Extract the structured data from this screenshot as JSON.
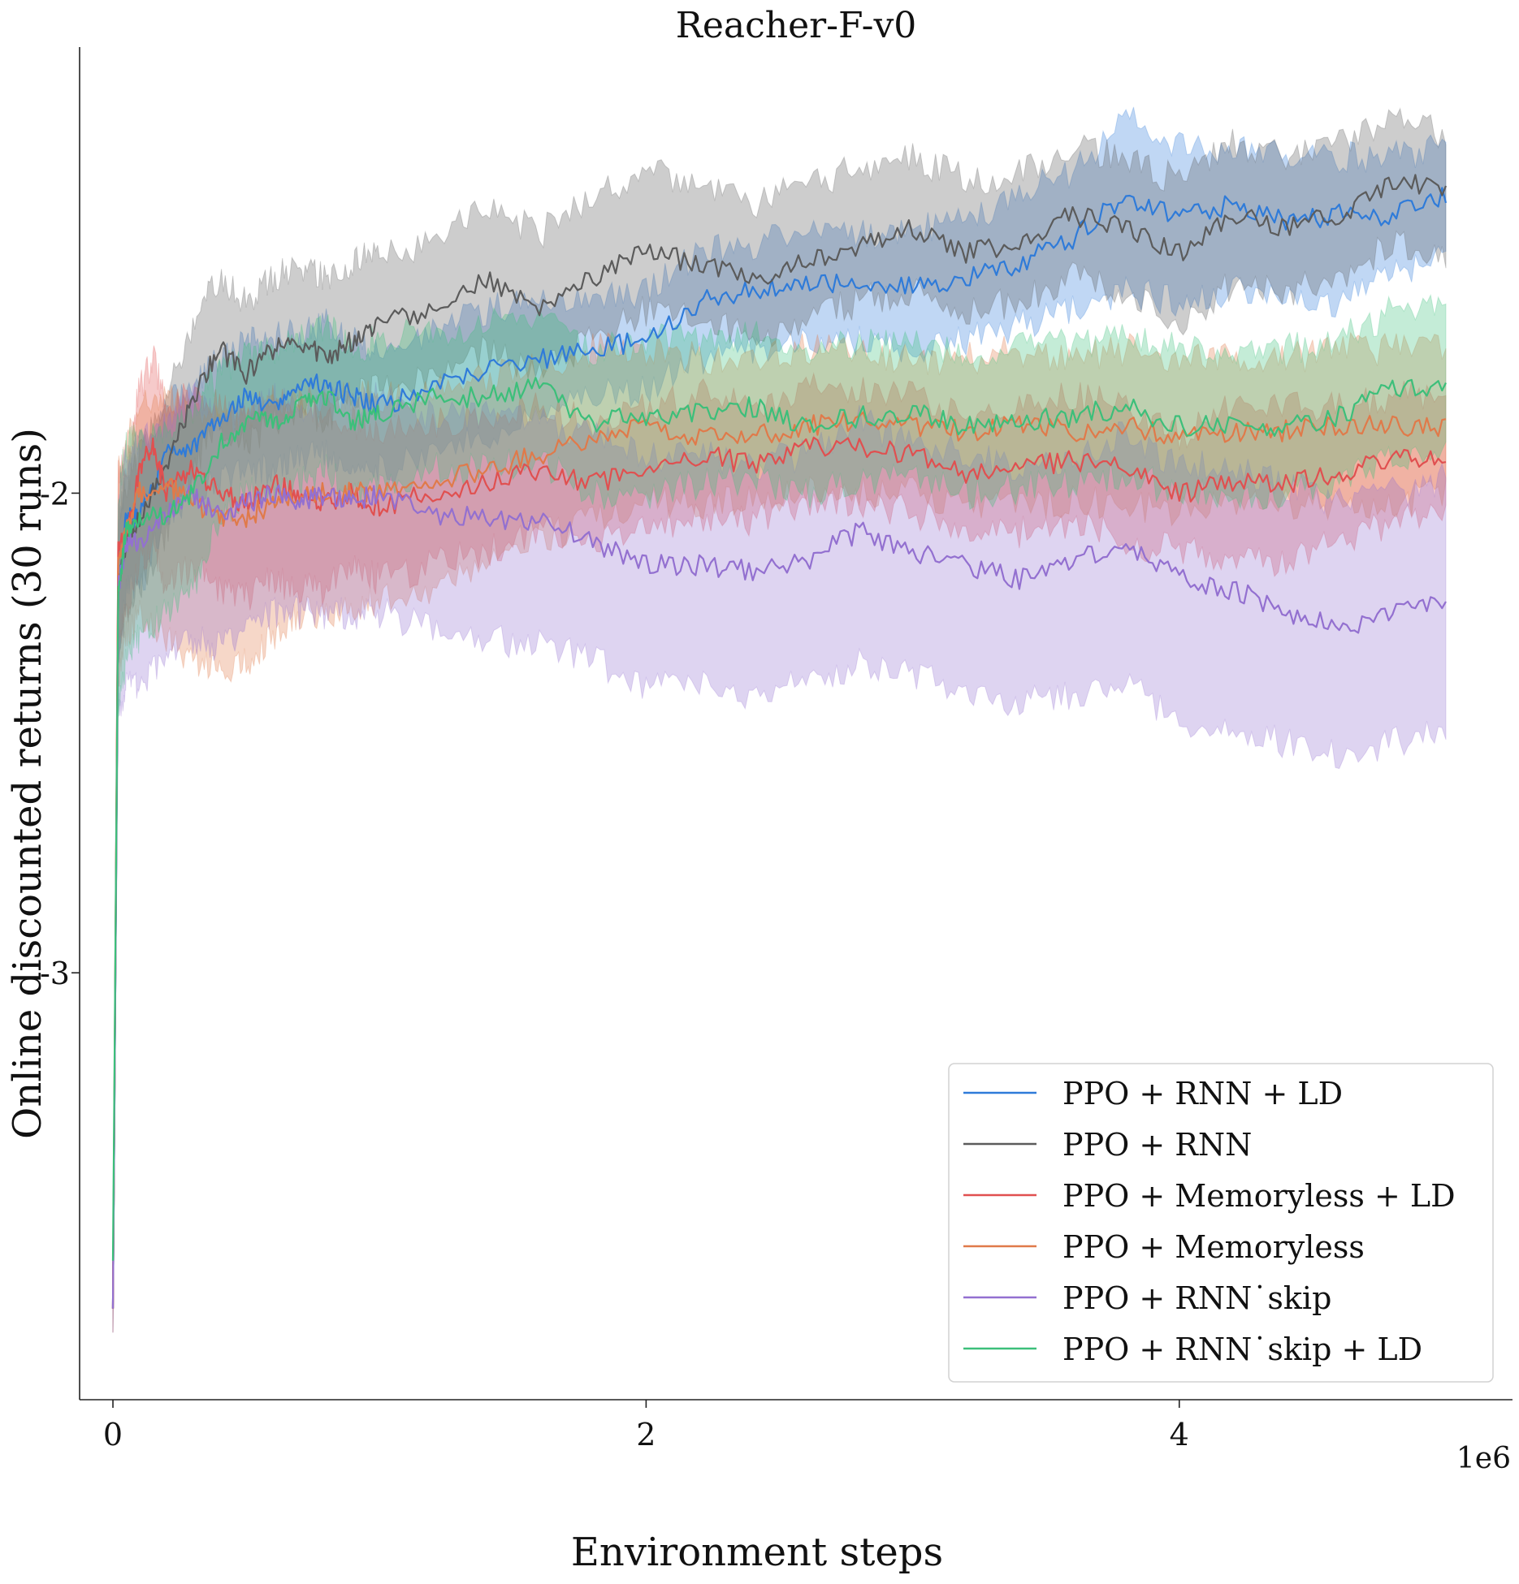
{
  "chart_data": {
    "type": "line",
    "title": "Reacher-F-v0",
    "xlabel": "Environment steps",
    "ylabel": "Online discounted returns (30 runs)",
    "x_offset_label": "1e6",
    "xlim": [
      -0.125,
      5.25
    ],
    "ylim": [
      -3.89,
      -1.07
    ],
    "x_ticks": [
      0,
      2,
      4
    ],
    "x_tick_labels": [
      "0",
      "2",
      "4"
    ],
    "y_ticks": [
      -3,
      -2
    ],
    "y_tick_labels": [
      "-3",
      "-2"
    ],
    "grid": false,
    "legend_position": "lower-right",
    "series": [
      {
        "name": "PPO + RNN + LD",
        "color": "#2f7bd9",
        "x": [
          0,
          0.02,
          0.05,
          0.1,
          0.2,
          0.3,
          0.4,
          0.5,
          0.6,
          0.7,
          0.8,
          0.9,
          1.0,
          1.2,
          1.4,
          1.6,
          1.8,
          2.0,
          2.2,
          2.4,
          2.6,
          2.8,
          3.0,
          3.2,
          3.4,
          3.6,
          3.8,
          4.0,
          4.2,
          4.4,
          4.6,
          4.8,
          5.0
        ],
        "mean": [
          -3.7,
          -2.2,
          -2.05,
          -2.05,
          -1.92,
          -1.9,
          -1.85,
          -1.8,
          -1.82,
          -1.78,
          -1.77,
          -1.8,
          -1.82,
          -1.78,
          -1.74,
          -1.72,
          -1.7,
          -1.68,
          -1.6,
          -1.58,
          -1.56,
          -1.56,
          -1.57,
          -1.55,
          -1.52,
          -1.47,
          -1.38,
          -1.42,
          -1.4,
          -1.43,
          -1.42,
          -1.42,
          -1.38
        ],
        "lower": [
          -3.75,
          -2.35,
          -2.2,
          -2.2,
          -2.05,
          -2.0,
          -1.98,
          -1.95,
          -1.95,
          -1.93,
          -1.92,
          -1.93,
          -1.95,
          -1.92,
          -1.88,
          -1.85,
          -1.8,
          -1.78,
          -1.72,
          -1.7,
          -1.68,
          -1.68,
          -1.7,
          -1.68,
          -1.65,
          -1.62,
          -1.58,
          -1.6,
          -1.58,
          -1.58,
          -1.6,
          -1.55,
          -1.5
        ],
        "upper": [
          -3.6,
          -2.1,
          -1.95,
          -1.9,
          -1.82,
          -1.78,
          -1.72,
          -1.68,
          -1.68,
          -1.66,
          -1.65,
          -1.68,
          -1.7,
          -1.66,
          -1.62,
          -1.6,
          -1.58,
          -1.58,
          -1.5,
          -1.48,
          -1.46,
          -1.46,
          -1.45,
          -1.43,
          -1.38,
          -1.33,
          -1.22,
          -1.28,
          -1.28,
          -1.3,
          -1.3,
          -1.3,
          -1.28
        ]
      },
      {
        "name": "PPO + RNN",
        "color": "#5b5b5b",
        "x": [
          0,
          0.02,
          0.05,
          0.1,
          0.2,
          0.3,
          0.4,
          0.5,
          0.6,
          0.7,
          0.8,
          0.9,
          1.0,
          1.2,
          1.4,
          1.6,
          1.8,
          2.0,
          2.2,
          2.4,
          2.6,
          2.8,
          3.0,
          3.2,
          3.4,
          3.6,
          3.8,
          4.0,
          4.2,
          4.4,
          4.6,
          4.8,
          5.0
        ],
        "mean": [
          -3.7,
          -2.2,
          -2.1,
          -2.05,
          -1.95,
          -1.8,
          -1.7,
          -1.75,
          -1.7,
          -1.68,
          -1.72,
          -1.68,
          -1.64,
          -1.62,
          -1.55,
          -1.62,
          -1.55,
          -1.5,
          -1.52,
          -1.56,
          -1.52,
          -1.48,
          -1.45,
          -1.5,
          -1.48,
          -1.42,
          -1.45,
          -1.5,
          -1.42,
          -1.45,
          -1.42,
          -1.35,
          -1.37
        ],
        "lower": [
          -3.75,
          -2.35,
          -2.25,
          -2.2,
          -2.08,
          -1.95,
          -1.85,
          -1.9,
          -1.85,
          -1.82,
          -1.85,
          -1.8,
          -1.78,
          -1.76,
          -1.7,
          -1.75,
          -1.68,
          -1.62,
          -1.64,
          -1.68,
          -1.64,
          -1.6,
          -1.58,
          -1.62,
          -1.6,
          -1.55,
          -1.58,
          -1.65,
          -1.56,
          -1.58,
          -1.55,
          -1.48,
          -1.5
        ],
        "upper": [
          -3.6,
          -2.05,
          -1.98,
          -1.92,
          -1.8,
          -1.65,
          -1.55,
          -1.6,
          -1.55,
          -1.52,
          -1.55,
          -1.52,
          -1.5,
          -1.48,
          -1.4,
          -1.46,
          -1.38,
          -1.33,
          -1.36,
          -1.4,
          -1.36,
          -1.32,
          -1.3,
          -1.35,
          -1.33,
          -1.28,
          -1.3,
          -1.35,
          -1.27,
          -1.3,
          -1.27,
          -1.22,
          -1.25
        ]
      },
      {
        "name": "PPO + Memoryless + LD",
        "color": "#e05050",
        "x": [
          0,
          0.02,
          0.05,
          0.1,
          0.15,
          0.2,
          0.3,
          0.4,
          0.5,
          0.6,
          0.7,
          0.8,
          0.9,
          1.0,
          1.2,
          1.4,
          1.6,
          1.8,
          2.0,
          2.2,
          2.4,
          2.6,
          2.8,
          3.0,
          3.2,
          3.4,
          3.6,
          3.8,
          4.0,
          4.2,
          4.4,
          4.6,
          4.8,
          5.0
        ],
        "mean": [
          -3.7,
          -2.1,
          -2.1,
          -1.95,
          -1.9,
          -2.0,
          -1.95,
          -2.0,
          -2.02,
          -1.98,
          -2.0,
          -2.02,
          -2.0,
          -2.03,
          -2.0,
          -1.98,
          -1.95,
          -1.98,
          -1.95,
          -1.92,
          -1.94,
          -1.9,
          -1.9,
          -1.92,
          -1.96,
          -1.95,
          -1.93,
          -1.95,
          -2.0,
          -1.98,
          -1.98,
          -1.96,
          -1.93,
          -1.92
        ],
        "lower": [
          -3.75,
          -2.3,
          -2.25,
          -2.15,
          -2.1,
          -2.2,
          -2.15,
          -2.2,
          -2.22,
          -2.18,
          -2.2,
          -2.2,
          -2.15,
          -2.18,
          -2.15,
          -2.12,
          -2.08,
          -2.1,
          -2.08,
          -2.05,
          -2.06,
          -2.02,
          -2.02,
          -2.04,
          -2.08,
          -2.08,
          -2.06,
          -2.1,
          -2.12,
          -2.14,
          -2.14,
          -2.1,
          -2.06,
          -2.05
        ],
        "upper": [
          -3.6,
          -1.95,
          -1.95,
          -1.78,
          -1.72,
          -1.82,
          -1.78,
          -1.82,
          -1.84,
          -1.8,
          -1.82,
          -1.85,
          -1.85,
          -1.88,
          -1.85,
          -1.84,
          -1.82,
          -1.85,
          -1.82,
          -1.79,
          -1.82,
          -1.78,
          -1.78,
          -1.8,
          -1.84,
          -1.82,
          -1.8,
          -1.82,
          -1.88,
          -1.82,
          -1.82,
          -1.82,
          -1.8,
          -1.8
        ]
      },
      {
        "name": "PPO + Memoryless",
        "color": "#e07a4a",
        "x": [
          0,
          0.02,
          0.05,
          0.1,
          0.2,
          0.3,
          0.4,
          0.5,
          0.6,
          0.7,
          0.8,
          0.9,
          1.0,
          1.2,
          1.4,
          1.6,
          1.8,
          2.0,
          2.2,
          2.4,
          2.6,
          2.8,
          3.0,
          3.2,
          3.4,
          3.6,
          3.8,
          4.0,
          4.2,
          4.4,
          4.6,
          4.8,
          5.0
        ],
        "mean": [
          -3.7,
          -2.15,
          -2.08,
          -2.0,
          -1.98,
          -2.02,
          -2.05,
          -2.05,
          -2.02,
          -2.0,
          -2.0,
          -2.0,
          -2.0,
          -1.98,
          -1.95,
          -1.92,
          -1.88,
          -1.86,
          -1.88,
          -1.88,
          -1.86,
          -1.85,
          -1.86,
          -1.87,
          -1.86,
          -1.87,
          -1.86,
          -1.88,
          -1.87,
          -1.87,
          -1.86,
          -1.86,
          -1.86
        ],
        "lower": [
          -3.75,
          -2.4,
          -2.3,
          -2.25,
          -2.3,
          -2.35,
          -2.38,
          -2.35,
          -2.3,
          -2.25,
          -2.25,
          -2.25,
          -2.22,
          -2.2,
          -2.15,
          -2.1,
          -2.05,
          -2.02,
          -2.02,
          -2.02,
          -2.0,
          -2.0,
          -2.0,
          -2.02,
          -2.02,
          -2.02,
          -2.02,
          -2.04,
          -2.02,
          -2.02,
          -2.02,
          -2.02,
          -2.0
        ],
        "upper": [
          -3.6,
          -1.95,
          -1.9,
          -1.82,
          -1.8,
          -1.82,
          -1.85,
          -1.85,
          -1.82,
          -1.8,
          -1.8,
          -1.8,
          -1.8,
          -1.78,
          -1.76,
          -1.74,
          -1.7,
          -1.7,
          -1.72,
          -1.72,
          -1.7,
          -1.7,
          -1.72,
          -1.72,
          -1.7,
          -1.72,
          -1.7,
          -1.72,
          -1.72,
          -1.72,
          -1.7,
          -1.7,
          -1.7
        ]
      },
      {
        "name": "PPO + RNN˙skip",
        "color": "#9370d0",
        "x": [
          0,
          0.02,
          0.05,
          0.1,
          0.2,
          0.3,
          0.4,
          0.5,
          0.6,
          0.7,
          0.8,
          0.9,
          1.0,
          1.2,
          1.4,
          1.6,
          1.8,
          2.0,
          2.2,
          2.4,
          2.6,
          2.8,
          3.0,
          3.2,
          3.4,
          3.6,
          3.8,
          4.0,
          4.2,
          4.4,
          4.6,
          4.8,
          5.0
        ],
        "mean": [
          -3.7,
          -2.2,
          -2.1,
          -2.1,
          -2.05,
          -2.0,
          -2.05,
          -2.02,
          -2.0,
          -2.02,
          -2.0,
          -2.02,
          -2.0,
          -2.05,
          -2.05,
          -2.06,
          -2.1,
          -2.15,
          -2.15,
          -2.16,
          -2.14,
          -2.08,
          -2.12,
          -2.15,
          -2.18,
          -2.14,
          -2.1,
          -2.18,
          -2.2,
          -2.25,
          -2.28,
          -2.25,
          -2.22
        ],
        "lower": [
          -3.75,
          -2.45,
          -2.4,
          -2.4,
          -2.35,
          -2.3,
          -2.32,
          -2.28,
          -2.25,
          -2.25,
          -2.25,
          -2.25,
          -2.25,
          -2.28,
          -2.3,
          -2.32,
          -2.35,
          -2.4,
          -2.4,
          -2.42,
          -2.4,
          -2.35,
          -2.38,
          -2.42,
          -2.44,
          -2.42,
          -2.4,
          -2.48,
          -2.5,
          -2.52,
          -2.54,
          -2.52,
          -2.48
        ],
        "upper": [
          -3.6,
          -2.0,
          -1.92,
          -1.9,
          -1.85,
          -1.8,
          -1.85,
          -1.82,
          -1.8,
          -1.82,
          -1.8,
          -1.82,
          -1.8,
          -1.84,
          -1.84,
          -1.84,
          -1.88,
          -1.92,
          -1.92,
          -1.94,
          -1.92,
          -1.85,
          -1.9,
          -1.92,
          -1.95,
          -1.92,
          -1.88,
          -1.94,
          -1.95,
          -1.98,
          -2.02,
          -2.0,
          -1.97
        ]
      },
      {
        "name": "PPO + RNN˙skip + LD",
        "color": "#3cbf7a",
        "x": [
          0,
          0.02,
          0.05,
          0.1,
          0.2,
          0.3,
          0.4,
          0.5,
          0.6,
          0.7,
          0.8,
          0.9,
          1.0,
          1.2,
          1.4,
          1.6,
          1.8,
          2.0,
          2.2,
          2.4,
          2.6,
          2.8,
          3.0,
          3.2,
          3.4,
          3.6,
          3.8,
          4.0,
          4.2,
          4.4,
          4.6,
          4.8,
          5.0
        ],
        "mean": [
          -3.6,
          -2.2,
          -2.08,
          -2.05,
          -2.05,
          -2.0,
          -1.9,
          -1.85,
          -1.85,
          -1.82,
          -1.8,
          -1.85,
          -1.83,
          -1.8,
          -1.8,
          -1.78,
          -1.85,
          -1.84,
          -1.83,
          -1.82,
          -1.86,
          -1.84,
          -1.83,
          -1.86,
          -1.85,
          -1.84,
          -1.82,
          -1.86,
          -1.86,
          -1.86,
          -1.84,
          -1.78,
          -1.78
        ],
        "lower": [
          -3.7,
          -2.45,
          -2.35,
          -2.3,
          -2.25,
          -2.2,
          -2.05,
          -2.0,
          -2.0,
          -1.98,
          -1.95,
          -2.0,
          -1.98,
          -1.95,
          -1.95,
          -1.93,
          -2.0,
          -2.0,
          -1.98,
          -1.97,
          -2.0,
          -1.98,
          -1.97,
          -2.0,
          -1.99,
          -1.98,
          -1.96,
          -2.0,
          -2.0,
          -2.0,
          -1.98,
          -1.92,
          -1.92
        ],
        "upper": [
          -3.5,
          -2.0,
          -1.9,
          -1.88,
          -1.88,
          -1.82,
          -1.75,
          -1.7,
          -1.7,
          -1.68,
          -1.65,
          -1.7,
          -1.68,
          -1.66,
          -1.65,
          -1.64,
          -1.7,
          -1.68,
          -1.68,
          -1.67,
          -1.7,
          -1.69,
          -1.68,
          -1.71,
          -1.7,
          -1.69,
          -1.67,
          -1.7,
          -1.7,
          -1.7,
          -1.68,
          -1.62,
          -1.62
        ]
      }
    ]
  }
}
